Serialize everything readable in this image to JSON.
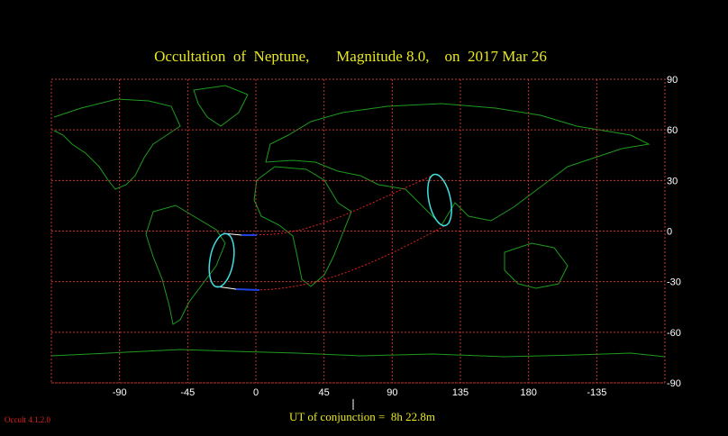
{
  "header": {
    "title": "Occultation  of  Neptune,       Magnitude 8.0,    on  2017 Mar 26"
  },
  "map": {
    "lon_ticks": [
      -90,
      -45,
      0,
      45,
      90,
      135,
      180,
      -135
    ],
    "lat_ticks": [
      90,
      60,
      30,
      0,
      -30,
      -60,
      -90
    ]
  },
  "footer": {
    "conjunction": "UT of conjunction =  8h 22.8m",
    "version": "Occult 4.1.2.0"
  }
}
